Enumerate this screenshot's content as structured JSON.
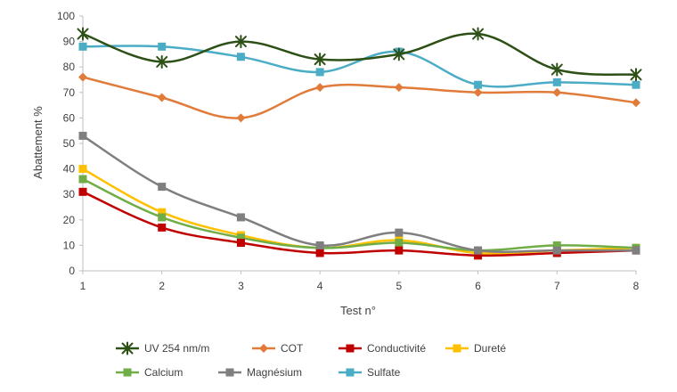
{
  "chart_data": {
    "type": "line",
    "title": "",
    "xlabel": "Test n°",
    "ylabel": "Abattement %",
    "x": [
      1,
      2,
      3,
      4,
      5,
      6,
      7,
      8
    ],
    "x_tick_labels": [
      "1",
      "2",
      "3",
      "4",
      "5",
      "6",
      "7",
      "8"
    ],
    "ylim": [
      0,
      100
    ],
    "y_ticks": [
      0,
      10,
      20,
      30,
      40,
      50,
      60,
      70,
      80,
      90,
      100
    ],
    "grid": false,
    "smooth": true,
    "legend_position": "bottom",
    "series": [
      {
        "name": "UV 254 nm/m",
        "color": "#2d5016",
        "marker": "star",
        "values": [
          93,
          82,
          90,
          83,
          85,
          93,
          79,
          77
        ]
      },
      {
        "name": "COT",
        "color": "#e07b39",
        "marker": "diamond",
        "values": [
          76,
          68,
          60,
          72,
          72,
          70,
          70,
          66
        ]
      },
      {
        "name": "Conductivité",
        "color": "#c00000",
        "marker": "square",
        "values": [
          31,
          17,
          11,
          7,
          8,
          6,
          7,
          8
        ]
      },
      {
        "name": "Dureté",
        "color": "#ffc000",
        "marker": "square",
        "values": [
          40,
          23,
          14,
          9,
          12,
          7,
          8,
          9
        ]
      },
      {
        "name": "Calcium",
        "color": "#70ad47",
        "marker": "square",
        "values": [
          36,
          21,
          13,
          9,
          11,
          8,
          10,
          9
        ]
      },
      {
        "name": "Magnésium",
        "color": "#7f7f7f",
        "marker": "square",
        "values": [
          53,
          33,
          21,
          10,
          15,
          8,
          8,
          8
        ]
      },
      {
        "name": "Sulfate",
        "color": "#4bacc6",
        "marker": "square",
        "values": [
          88,
          88,
          84,
          78,
          86,
          73,
          74,
          73
        ]
      }
    ]
  }
}
